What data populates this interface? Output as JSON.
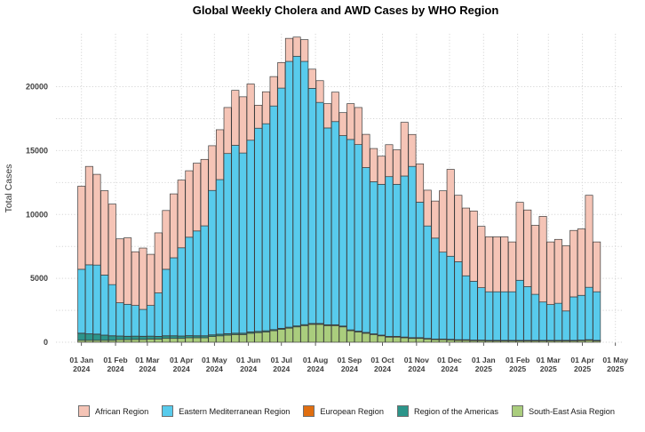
{
  "title": "Global Weekly Cholera and AWD Cases by WHO Region",
  "chart_data": {
    "type": "bar",
    "stacked": true,
    "title": "Global Weekly Cholera and AWD Cases by WHO Region",
    "xlabel": "",
    "ylabel": "Total Cases",
    "ylim": [
      0,
      24000
    ],
    "y_ticks": [
      0,
      5000,
      10000,
      15000,
      20000
    ],
    "y_minor_step": 2500,
    "grid": "dotted light gray, horizontal and vertical at month breaks",
    "legend_position": "bottom",
    "x_ticks": [
      {
        "l1": "01 Jan",
        "l2": "2024",
        "day": 0
      },
      {
        "l1": "01 Feb",
        "l2": "2024",
        "day": 31
      },
      {
        "l1": "01 Mar",
        "l2": "2024",
        "day": 60
      },
      {
        "l1": "01 Apr",
        "l2": "2024",
        "day": 91
      },
      {
        "l1": "01 May",
        "l2": "2024",
        "day": 121
      },
      {
        "l1": "01 Jun",
        "l2": "2024",
        "day": 152
      },
      {
        "l1": "01 Jul",
        "l2": "2024",
        "day": 182
      },
      {
        "l1": "01 Aug",
        "l2": "2024",
        "day": 213
      },
      {
        "l1": "01 Sep",
        "l2": "2024",
        "day": 244
      },
      {
        "l1": "01 Oct",
        "l2": "2024",
        "day": 274
      },
      {
        "l1": "01 Nov",
        "l2": "2024",
        "day": 305
      },
      {
        "l1": "01 Dec",
        "l2": "2024",
        "day": 335
      },
      {
        "l1": "01 Jan",
        "l2": "2025",
        "day": 366
      },
      {
        "l1": "01 Feb",
        "l2": "2025",
        "day": 397
      },
      {
        "l1": "01 Mar",
        "l2": "2025",
        "day": 425
      },
      {
        "l1": "01 Apr",
        "l2": "2025",
        "day": 456
      },
      {
        "l1": "01 May",
        "l2": "2025",
        "day": 486
      }
    ],
    "week_start_dates": [
      "2024-01-01",
      "2024-01-08",
      "2024-01-15",
      "2024-01-22",
      "2024-01-29",
      "2024-02-05",
      "2024-02-12",
      "2024-02-19",
      "2024-02-26",
      "2024-03-04",
      "2024-03-11",
      "2024-03-18",
      "2024-03-25",
      "2024-04-01",
      "2024-04-08",
      "2024-04-15",
      "2024-04-22",
      "2024-04-29",
      "2024-05-06",
      "2024-05-13",
      "2024-05-20",
      "2024-05-27",
      "2024-06-03",
      "2024-06-10",
      "2024-06-17",
      "2024-06-24",
      "2024-07-01",
      "2024-07-08",
      "2024-07-15",
      "2024-07-22",
      "2024-07-29",
      "2024-08-05",
      "2024-08-12",
      "2024-08-19",
      "2024-08-26",
      "2024-09-02",
      "2024-09-09",
      "2024-09-16",
      "2024-09-23",
      "2024-09-30",
      "2024-10-07",
      "2024-10-14",
      "2024-10-21",
      "2024-10-28",
      "2024-11-04",
      "2024-11-11",
      "2024-11-18",
      "2024-11-25",
      "2024-12-02",
      "2024-12-09",
      "2024-12-16",
      "2024-12-23",
      "2024-12-30",
      "2025-01-06",
      "2025-01-13",
      "2025-01-20",
      "2025-01-27",
      "2025-02-03",
      "2025-02-10",
      "2025-02-17",
      "2025-02-24",
      "2025-03-03",
      "2025-03-10",
      "2025-03-17",
      "2025-03-24",
      "2025-03-31",
      "2025-04-07",
      "2025-04-14"
    ],
    "series": [
      {
        "name": "South-East Asia Region",
        "key": "south-east-asia-region",
        "color": "#aacd7d",
        "values": [
          150,
          150,
          150,
          150,
          150,
          200,
          200,
          220,
          220,
          250,
          250,
          300,
          300,
          300,
          350,
          350,
          350,
          450,
          500,
          550,
          600,
          600,
          700,
          750,
          800,
          900,
          1000,
          1100,
          1200,
          1300,
          1400,
          1400,
          1300,
          1300,
          1200,
          900,
          800,
          700,
          600,
          500,
          400,
          400,
          350,
          300,
          300,
          250,
          200,
          200,
          180,
          150,
          150,
          120,
          120,
          100,
          100,
          100,
          100,
          100,
          100,
          100,
          100,
          100,
          100,
          100,
          100,
          120,
          150,
          100
        ]
      },
      {
        "name": "Region of the Americas",
        "key": "region-of-the-americas",
        "color": "#2c958a",
        "values": [
          550,
          500,
          480,
          400,
          350,
          280,
          260,
          250,
          240,
          220,
          200,
          200,
          200,
          180,
          160,
          150,
          150,
          120,
          120,
          110,
          100,
          100,
          100,
          90,
          90,
          80,
          80,
          70,
          70,
          70,
          60,
          60,
          60,
          60,
          60,
          60,
          60,
          60,
          50,
          50,
          50,
          50,
          50,
          50,
          50,
          40,
          40,
          40,
          40,
          40,
          40,
          40,
          40,
          40,
          40,
          40,
          40,
          40,
          40,
          40,
          40,
          40,
          40,
          40,
          40,
          40,
          40,
          40
        ]
      },
      {
        "name": "European Region",
        "key": "european-region",
        "color": "#e06e10",
        "values": [
          10,
          10,
          10,
          10,
          10,
          10,
          10,
          10,
          10,
          10,
          10,
          10,
          10,
          10,
          10,
          10,
          10,
          10,
          10,
          10,
          10,
          10,
          10,
          10,
          10,
          10,
          10,
          10,
          10,
          10,
          10,
          10,
          10,
          10,
          10,
          10,
          10,
          10,
          10,
          10,
          10,
          10,
          10,
          10,
          10,
          10,
          10,
          10,
          10,
          10,
          10,
          10,
          10,
          10,
          10,
          10,
          10,
          10,
          10,
          10,
          10,
          10,
          10,
          10,
          10,
          10,
          10,
          10
        ]
      },
      {
        "name": "Eastern Mediterranean Region",
        "key": "eastern-mediterranean-region",
        "color": "#58cbec",
        "values": [
          5000,
          5400,
          5400,
          4700,
          4000,
          2600,
          2500,
          2400,
          2100,
          2400,
          3400,
          5200,
          6100,
          6900,
          7700,
          8200,
          8600,
          11300,
          12100,
          14100,
          14700,
          14100,
          15000,
          15900,
          16200,
          17500,
          18800,
          20800,
          21100,
          20600,
          18400,
          17300,
          15400,
          15900,
          14900,
          14900,
          14600,
          12900,
          11900,
          11800,
          12500,
          11900,
          12600,
          13400,
          10600,
          8800,
          7900,
          6800,
          6500,
          6100,
          5000,
          4600,
          4100,
          3800,
          3800,
          3800,
          3800,
          4700,
          4200,
          3600,
          3000,
          2800,
          2900,
          2300,
          3400,
          3500,
          4100,
          3800
        ]
      },
      {
        "name": "African Region",
        "key": "african-region",
        "color": "#f5c4b6",
        "values": [
          6500,
          7700,
          7100,
          6600,
          6300,
          5000,
          5200,
          4200,
          4800,
          4000,
          4700,
          4600,
          5000,
          5300,
          5200,
          5300,
          5200,
          3500,
          3900,
          3600,
          4300,
          4400,
          4400,
          1800,
          2500,
          2300,
          2000,
          1800,
          1500,
          1700,
          1500,
          1700,
          1900,
          2300,
          1800,
          2800,
          2900,
          2600,
          2600,
          2200,
          2500,
          2700,
          4200,
          2500,
          3000,
          2800,
          2900,
          4800,
          6800,
          5200,
          5300,
          5500,
          4800,
          4300,
          4300,
          4300,
          3900,
          6100,
          6000,
          5400,
          6700,
          4900,
          5000,
          5100,
          5200,
          5200,
          7200,
          3900
        ]
      }
    ],
    "legend": [
      {
        "label": "African Region",
        "color": "#f5c4b6",
        "key": "african-region"
      },
      {
        "label": "Eastern Mediterranean Region",
        "color": "#58cbec",
        "key": "eastern-mediterranean-region"
      },
      {
        "label": "European Region",
        "color": "#e06e10",
        "key": "european-region"
      },
      {
        "label": "Region of the Americas",
        "color": "#2c958a",
        "key": "region-of-the-americas"
      },
      {
        "label": "South-East Asia Region",
        "color": "#aacd7d",
        "key": "south-east-asia-region"
      }
    ],
    "style": {
      "bar_stroke": "#3d3d3d",
      "grid_color": "#d6d6d6",
      "axis_text_color": "#3f3f3f",
      "background": "#ffffff"
    }
  }
}
